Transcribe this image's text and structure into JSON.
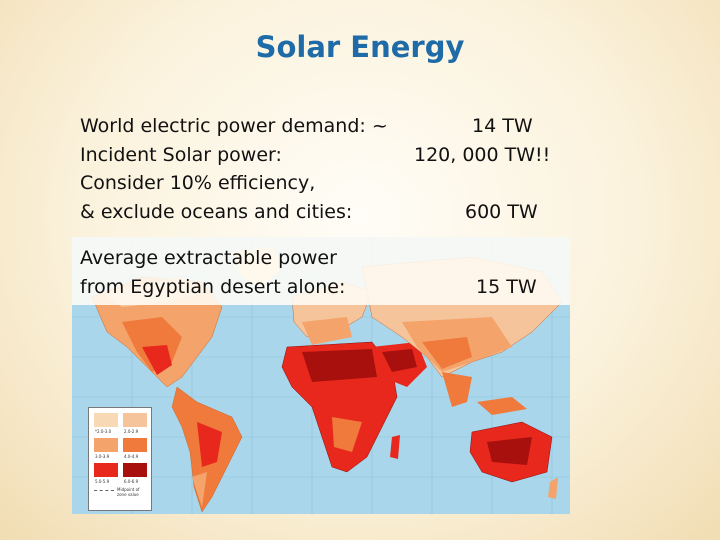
{
  "slide": {
    "title": "Solar Energy",
    "lines": [
      {
        "label": "World electric power demand:  ~",
        "value": "14 TW"
      },
      {
        "label": "Incident Solar power:",
        "value": "120, 000 TW!!"
      },
      {
        "label": "Consider 10% efficiency,",
        "value": ""
      },
      {
        "label": "& exclude oceans and cities:",
        "value": "600 TW"
      }
    ],
    "egypt": {
      "line1": "Average extractable power",
      "line2": "from Egyptian desert alone:",
      "value": "15 TW"
    }
  },
  "map": {
    "ocean_color": "#a9d6ea",
    "legend": {
      "items": [
        {
          "label": "*2.0-3.0",
          "color": "#f8d9b6"
        },
        {
          "label": "2.0-2.9",
          "color": "#f6c49a"
        },
        {
          "label": "3.0-3.9",
          "color": "#f4a46a"
        },
        {
          "label": "4.0-4.9",
          "color": "#ef7a3c"
        },
        {
          "label": "5.0-5.9",
          "color": "#e8281c"
        },
        {
          "label": "6.0-6.9",
          "color": "#a8100e"
        }
      ],
      "note": "Midpoint of zone value"
    }
  }
}
